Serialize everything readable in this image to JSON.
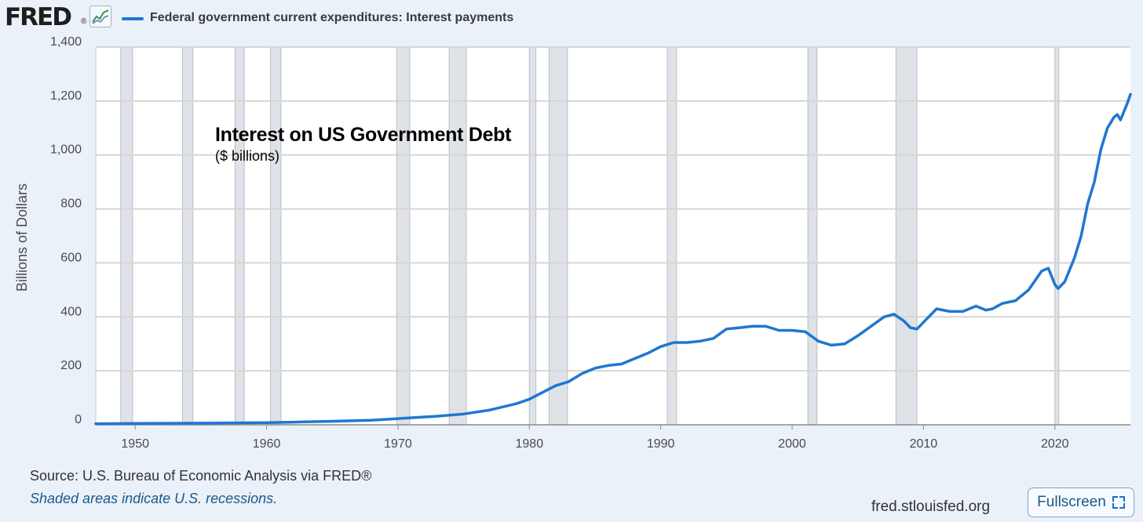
{
  "header": {
    "logo_text": "FRED",
    "logo_mark": "®",
    "graph_icon": "line-graph-icon",
    "legend_label": "Federal government current expenditures: Interest payments",
    "series_color": "#1f77d0"
  },
  "annotation": {
    "title": "Interest on US Government Debt",
    "subtitle": "($ billions)"
  },
  "footer": {
    "source": "Source: U.S. Bureau of Economic Analysis via FRED®",
    "recession_note": "Shaded areas indicate U.S. recessions.",
    "site": "fred.stlouisfed.org",
    "fullscreen_label": "Fullscreen",
    "fullscreen_icon": "expand-icon"
  },
  "colors": {
    "background": "#eaf1f9",
    "plot_background": "#ffffff",
    "recession_shade": "#dfe3e8",
    "gridline": "#d6d6d6",
    "line": "#1f77d0"
  },
  "chart_data": {
    "type": "line",
    "title": "",
    "xlabel": "",
    "ylabel": "Billions of Dollars",
    "xlim": [
      1947,
      2025.75
    ],
    "ylim": [
      0,
      1400
    ],
    "x_ticks": [
      1950,
      1960,
      1970,
      1980,
      1990,
      2000,
      2010,
      2020
    ],
    "y_ticks": [
      0,
      200,
      400,
      600,
      800,
      1000,
      1200,
      1400
    ],
    "y_tick_labels": [
      "0",
      "200",
      "400",
      "600",
      "800",
      "1,000",
      "1,200",
      "1,400"
    ],
    "grid": true,
    "recessions": [
      [
        1948.9,
        1949.8
      ],
      [
        1953.6,
        1954.4
      ],
      [
        1957.6,
        1958.3
      ],
      [
        1960.3,
        1961.1
      ],
      [
        1969.9,
        1970.9
      ],
      [
        1973.9,
        1975.2
      ],
      [
        1980.0,
        1980.5
      ],
      [
        1981.5,
        1982.9
      ],
      [
        1990.5,
        1991.2
      ],
      [
        2001.2,
        2001.9
      ],
      [
        2007.9,
        2009.5
      ],
      [
        2020.0,
        2020.3
      ]
    ],
    "series": [
      {
        "name": "Federal government current expenditures: Interest payments",
        "x": [
          1947,
          1950,
          1955,
          1960,
          1962,
          1965,
          1968,
          1970,
          1973,
          1975,
          1977,
          1979,
          1980,
          1981,
          1982,
          1983,
          1984,
          1985,
          1986,
          1987,
          1988,
          1989,
          1990,
          1991,
          1992,
          1993,
          1994,
          1995,
          1996,
          1997,
          1998,
          1999,
          2000,
          2001,
          2002,
          2003,
          2004,
          2005,
          2006,
          2007,
          2007.75,
          2008.5,
          2009,
          2009.5,
          2010,
          2011,
          2012,
          2013,
          2014,
          2014.75,
          2015.25,
          2016,
          2017,
          2018,
          2019,
          2019.5,
          2020,
          2020.25,
          2020.75,
          2021,
          2021.5,
          2022,
          2022.5,
          2023,
          2023.5,
          2024,
          2024.5,
          2024.75,
          2025,
          2025.25,
          2025.5,
          2025.75
        ],
        "y": [
          4,
          5,
          6,
          8,
          10,
          13,
          17,
          23,
          32,
          40,
          55,
          78,
          95,
          120,
          145,
          160,
          190,
          210,
          220,
          225,
          245,
          265,
          290,
          305,
          305,
          310,
          320,
          355,
          360,
          365,
          365,
          350,
          350,
          345,
          310,
          295,
          300,
          330,
          365,
          400,
          410,
          385,
          360,
          355,
          380,
          430,
          420,
          420,
          440,
          425,
          430,
          450,
          460,
          500,
          570,
          580,
          520,
          505,
          530,
          560,
          620,
          700,
          820,
          900,
          1020,
          1100,
          1140,
          1150,
          1130,
          1160,
          1190,
          1225
        ]
      }
    ]
  }
}
